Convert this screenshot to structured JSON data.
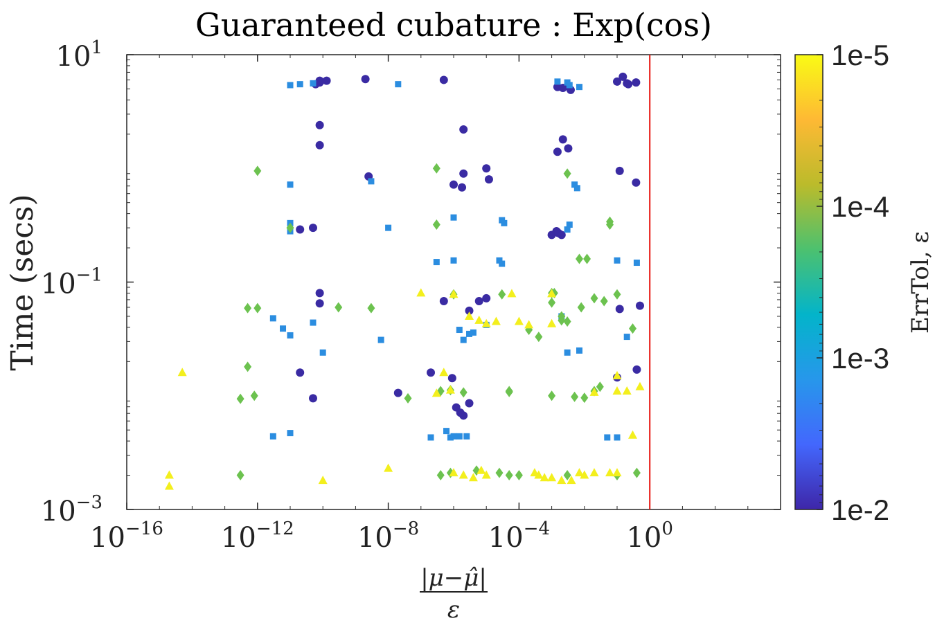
{
  "chart_data": {
    "type": "scatter",
    "title": "Guaranteed cubature : Exp(cos)",
    "xlabel_numerator": "|μ−μ̂|",
    "xlabel_denominator": "ε",
    "ylabel": "Time (secs)",
    "xscale": "log",
    "yscale": "log",
    "xlim": [
      1e-16,
      10000.0
    ],
    "ylim": [
      0.001,
      10
    ],
    "x_tick_base": "10",
    "x_ticks": [
      {
        "value": 1e-16,
        "exp": "−16"
      },
      {
        "value": 1e-12,
        "exp": "−12"
      },
      {
        "value": 1e-08,
        "exp": "−8"
      },
      {
        "value": 0.0001,
        "exp": "−4"
      },
      {
        "value": 1,
        "exp": "0"
      }
    ],
    "y_tick_base": "10",
    "y_ticks": [
      {
        "value": 0.001,
        "exp": "−3"
      },
      {
        "value": 0.1,
        "exp": "−1"
      },
      {
        "value": 10,
        "exp": "1"
      }
    ],
    "reference_line": {
      "x": 1,
      "color": "#e8120c"
    },
    "colorbar": {
      "label": "ErrTol, ε",
      "scale": "log",
      "range": [
        1e-05,
        0.01
      ],
      "ticks": [
        "1e-5",
        "1e-4",
        "1e-3",
        "1e-2"
      ],
      "stops": [
        "#3e26a8",
        "#4367fd",
        "#2797eb",
        "#03b4ca",
        "#4cc16f",
        "#bbbb2b",
        "#feb934",
        "#f9fb15"
      ]
    },
    "series": [
      {
        "errtol": 1e-05,
        "marker": "circle",
        "color": "#3a2ba3",
        "points": [
          [
            6e-11,
            5.5
          ],
          [
            8e-11,
            5.7
          ],
          [
            8e-11,
            5.9
          ],
          [
            1.3e-10,
            5.9
          ],
          [
            2e-09,
            6.1
          ],
          [
            5e-07,
            6.0
          ],
          [
            8e-11,
            2.4
          ],
          [
            8e-11,
            1.6
          ],
          [
            2e-06,
            2.2
          ],
          [
            2.5e-09,
            0.85
          ],
          [
            1e-06,
            0.72
          ],
          [
            1.8e-06,
            0.68
          ],
          [
            2e-06,
            0.9
          ],
          [
            1e-05,
            1.0
          ],
          [
            1.2e-05,
            0.8
          ],
          [
            2e-11,
            0.29
          ],
          [
            5e-11,
            0.3
          ],
          [
            0.0015,
            5.2
          ],
          [
            0.0022,
            5.1
          ],
          [
            0.0038,
            4.9
          ],
          [
            0.1,
            5.8
          ],
          [
            0.15,
            6.4
          ],
          [
            0.2,
            5.6
          ],
          [
            0.22,
            5.5
          ],
          [
            0.38,
            5.7
          ],
          [
            0.0022,
            1.8
          ],
          [
            0.0015,
            1.4
          ],
          [
            0.0032,
            1.5
          ],
          [
            0.12,
            0.95
          ],
          [
            0.38,
            0.75
          ],
          [
            0.001,
            0.26
          ],
          [
            0.0014,
            0.28
          ],
          [
            0.0016,
            0.27
          ],
          [
            0.002,
            0.26
          ],
          [
            8e-11,
            0.08
          ],
          [
            8e-11,
            0.065
          ],
          [
            5e-07,
            0.068
          ],
          [
            3e-06,
            0.056
          ],
          [
            6e-06,
            0.068
          ],
          [
            1e-05,
            0.072
          ],
          [
            0.12,
            0.058
          ],
          [
            0.5,
            0.062
          ],
          [
            2e-11,
            0.016
          ],
          [
            5e-11,
            0.0095
          ],
          [
            2e-08,
            0.0106
          ],
          [
            2e-07,
            0.016
          ],
          [
            9e-07,
            0.0143
          ],
          [
            1.2e-06,
            0.0079
          ],
          [
            1.6e-06,
            0.0071
          ],
          [
            2e-06,
            0.0067
          ],
          [
            3e-06,
            0.0086
          ],
          [
            0.1,
            0.0145
          ],
          [
            0.4,
            0.017
          ]
        ]
      },
      {
        "errtol": 0.0001,
        "marker": "square",
        "color": "#2b8de0",
        "points": [
          [
            1e-11,
            5.4
          ],
          [
            2e-11,
            5.5
          ],
          [
            5e-11,
            5.6
          ],
          [
            2e-08,
            5.5
          ],
          [
            1e-11,
            0.72
          ],
          [
            3e-09,
            0.77
          ],
          [
            1e-11,
            0.33
          ],
          [
            1e-11,
            0.28
          ],
          [
            1e-08,
            0.3
          ],
          [
            1e-06,
            0.37
          ],
          [
            0.0015,
            5.8
          ],
          [
            0.003,
            5.7
          ],
          [
            0.0035,
            5.4
          ],
          [
            0.007,
            5.2
          ],
          [
            0.005,
            0.72
          ],
          [
            0.006,
            0.67
          ],
          [
            3e-05,
            0.35
          ],
          [
            3.5e-05,
            0.33
          ],
          [
            0.003,
            0.29
          ],
          [
            0.0035,
            0.32
          ],
          [
            3e-07,
            0.15
          ],
          [
            1e-06,
            0.155
          ],
          [
            2.5e-05,
            0.155
          ],
          [
            3e-05,
            0.145
          ],
          [
            0.1,
            0.155
          ],
          [
            0.4,
            0.148
          ],
          [
            3e-12,
            0.048
          ],
          [
            6e-12,
            0.039
          ],
          [
            1e-11,
            0.034
          ],
          [
            5e-11,
            0.044
          ],
          [
            1e-10,
            0.024
          ],
          [
            6e-09,
            0.031
          ],
          [
            1.5e-06,
            0.038
          ],
          [
            2e-06,
            0.031
          ],
          [
            3e-06,
            0.035
          ],
          [
            4e-06,
            0.036
          ],
          [
            1e-05,
            0.042
          ],
          [
            0.002,
            0.05
          ],
          [
            0.003,
            0.024
          ],
          [
            0.007,
            0.025
          ],
          [
            0.2,
            0.033
          ],
          [
            3e-12,
            0.0044
          ],
          [
            1e-11,
            0.0047
          ],
          [
            2e-07,
            0.0043
          ],
          [
            6e-07,
            0.0049
          ],
          [
            8e-07,
            0.0043
          ],
          [
            1e-06,
            0.0044
          ],
          [
            1.5e-06,
            0.0044
          ],
          [
            2.5e-06,
            0.0044
          ],
          [
            0.05,
            0.0043
          ],
          [
            0.1,
            0.0043
          ]
        ]
      },
      {
        "errtol": 0.001,
        "marker": "diamond",
        "color": "#6cc24f",
        "points": [
          [
            1e-12,
            0.95
          ],
          [
            1e-11,
            0.3
          ],
          [
            3e-07,
            1.0
          ],
          [
            3e-07,
            0.32
          ],
          [
            0.003,
            0.9
          ],
          [
            0.06,
            0.32
          ],
          [
            0.06,
            0.34
          ],
          [
            0.007,
            0.16
          ],
          [
            0.012,
            0.16
          ],
          [
            5e-13,
            0.059
          ],
          [
            1e-12,
            0.059
          ],
          [
            3e-10,
            0.06
          ],
          [
            3e-09,
            0.059
          ],
          [
            1e-06,
            0.078
          ],
          [
            3e-05,
            0.078
          ],
          [
            0.001,
            0.08
          ],
          [
            0.001,
            0.066
          ],
          [
            0.0012,
            0.08
          ],
          [
            0.02,
            0.072
          ],
          [
            0.04,
            0.068
          ],
          [
            0.1,
            0.078
          ],
          [
            0.0002,
            0.038
          ],
          [
            0.0004,
            0.033
          ],
          [
            0.002,
            0.05
          ],
          [
            0.002,
            0.046
          ],
          [
            0.003,
            0.045
          ],
          [
            0.008,
            0.06
          ],
          [
            0.3,
            0.039
          ],
          [
            5e-13,
            0.018
          ],
          [
            3e-13,
            0.0094
          ],
          [
            8e-13,
            0.01
          ],
          [
            4e-08,
            0.0095
          ],
          [
            4e-07,
            0.011
          ],
          [
            8e-07,
            0.0112
          ],
          [
            2e-06,
            0.0107
          ],
          [
            5e-05,
            0.0108
          ],
          [
            5e-05,
            0.011
          ],
          [
            0.001,
            0.01
          ],
          [
            0.005,
            0.0098
          ],
          [
            0.01,
            0.0096
          ],
          [
            0.02,
            0.011
          ],
          [
            0.03,
            0.012
          ],
          [
            3e-13,
            0.002
          ],
          [
            4e-07,
            0.002
          ],
          [
            8e-07,
            0.0021
          ],
          [
            5e-06,
            0.0022
          ],
          [
            2.5e-05,
            0.0021
          ],
          [
            5e-05,
            0.002
          ],
          [
            0.0001,
            0.002
          ],
          [
            0.003,
            0.002
          ],
          [
            0.1,
            0.002
          ],
          [
            0.4,
            0.0021
          ]
        ]
      },
      {
        "errtol": 0.01,
        "marker": "triangle",
        "color": "#f3ef1d",
        "points": [
          [
            2e-15,
            0.002
          ],
          [
            2e-15,
            0.0016
          ],
          [
            5e-15,
            0.016
          ],
          [
            1e-10,
            0.0018
          ],
          [
            1e-08,
            0.0023
          ],
          [
            1e-07,
            0.08
          ],
          [
            1e-06,
            0.078
          ],
          [
            6e-05,
            0.079
          ],
          [
            0.001,
            0.079
          ],
          [
            5e-07,
            0.016
          ],
          [
            3e-06,
            0.05
          ],
          [
            6e-06,
            0.046
          ],
          [
            1e-05,
            0.043
          ],
          [
            2e-05,
            0.045
          ],
          [
            0.0001,
            0.045
          ],
          [
            0.0002,
            0.042
          ],
          [
            0.001,
            0.043
          ],
          [
            0.1,
            0.015
          ],
          [
            3e-07,
            0.0105
          ],
          [
            8e-07,
            0.0112
          ],
          [
            0.02,
            0.0107
          ],
          [
            0.2,
            0.011
          ],
          [
            0.5,
            0.012
          ],
          [
            0.1,
            0.011
          ],
          [
            0.3,
            0.0045
          ],
          [
            1e-06,
            0.0021
          ],
          [
            2e-06,
            0.002
          ],
          [
            4e-06,
            0.0019
          ],
          [
            7e-06,
            0.0022
          ],
          [
            1e-05,
            0.002
          ],
          [
            0.0003,
            0.0021
          ],
          [
            0.0004,
            0.002
          ],
          [
            0.0006,
            0.0019
          ],
          [
            0.001,
            0.0019
          ],
          [
            0.002,
            0.0018
          ],
          [
            0.004,
            0.0018
          ],
          [
            0.007,
            0.0021
          ],
          [
            0.01,
            0.002
          ],
          [
            0.02,
            0.0021
          ],
          [
            0.06,
            0.0021
          ],
          [
            0.1,
            0.0021
          ]
        ]
      }
    ]
  }
}
